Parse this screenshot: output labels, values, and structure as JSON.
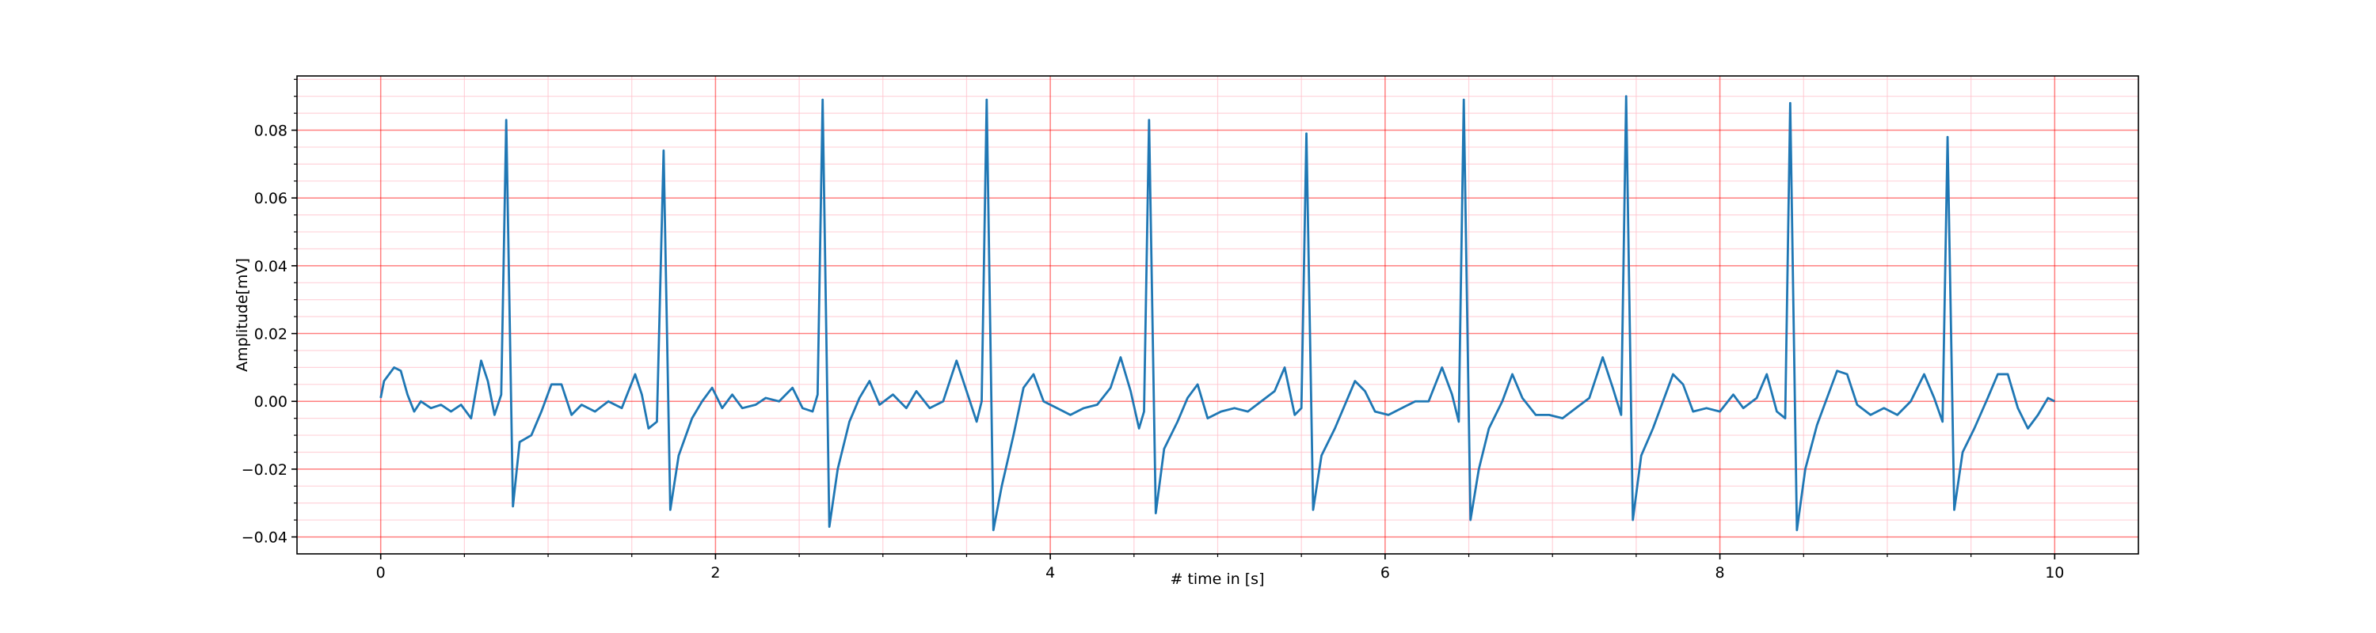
{
  "chart_data": {
    "type": "line",
    "xlabel": "# time in [s]",
    "ylabel": "Amplitude[mV]",
    "xlim": [
      -0.5,
      10.5
    ],
    "ylim": [
      -0.045,
      0.096
    ],
    "xticks": [
      0,
      2,
      4,
      6,
      8,
      10
    ],
    "yticks": [
      {
        "value": -0.04,
        "label": "−0.04"
      },
      {
        "value": -0.02,
        "label": "−0.02"
      },
      {
        "value": 0,
        "label": "0.00"
      },
      0.04,
      0.02,
      0.06,
      0.08
    ],
    "xminorticks": [
      0.5,
      1,
      1.5,
      2.5,
      3,
      3.5,
      4.5,
      5,
      5.5,
      6.5,
      7,
      7.5,
      8.5,
      9,
      9.5
    ],
    "yminorticks": [
      -0.035,
      -0.03,
      -0.025,
      -0.015,
      -0.01,
      -0.005,
      0.005,
      0.01,
      0.015,
      0.025,
      0.03,
      0.035,
      0.045,
      0.05,
      0.055,
      0.065,
      0.07,
      0.075,
      0.085,
      0.09,
      0.095
    ],
    "grid": true,
    "grid_color": "#ff0000",
    "minor_grid_color": "#ffc0cb",
    "x": [
      0,
      0.02,
      0.08,
      0.12,
      0.16,
      0.2,
      0.24,
      0.3,
      0.36,
      0.42,
      0.48,
      0.54,
      0.6,
      0.64,
      0.68,
      0.72,
      0.75,
      0.79,
      0.83,
      0.9,
      0.96,
      1.02,
      1.08,
      1.14,
      1.2,
      1.28,
      1.36,
      1.44,
      1.52,
      1.56,
      1.6,
      1.65,
      1.69,
      1.73,
      1.78,
      1.86,
      1.92,
      1.98,
      2.04,
      2.1,
      2.16,
      2.24,
      2.3,
      2.38,
      2.46,
      2.52,
      2.58,
      2.61,
      2.64,
      2.68,
      2.73,
      2.8,
      2.86,
      2.92,
      2.98,
      3.06,
      3.14,
      3.2,
      3.28,
      3.36,
      3.44,
      3.5,
      3.56,
      3.59,
      3.62,
      3.66,
      3.71,
      3.78,
      3.84,
      3.9,
      3.96,
      4.04,
      4.12,
      4.2,
      4.28,
      4.36,
      4.42,
      4.48,
      4.53,
      4.56,
      4.59,
      4.63,
      4.68,
      4.76,
      4.82,
      4.88,
      4.94,
      5.02,
      5.1,
      5.18,
      5.26,
      5.34,
      5.4,
      5.46,
      5.5,
      5.53,
      5.57,
      5.62,
      5.7,
      5.76,
      5.82,
      5.88,
      5.94,
      6.02,
      6.1,
      6.18,
      6.26,
      6.34,
      6.4,
      6.44,
      6.47,
      6.51,
      6.56,
      6.62,
      6.7,
      6.76,
      6.82,
      6.9,
      6.98,
      7.06,
      7.14,
      7.22,
      7.3,
      7.36,
      7.41,
      7.44,
      7.48,
      7.53,
      7.6,
      7.66,
      7.72,
      7.78,
      7.84,
      7.92,
      8.0,
      8.08,
      8.14,
      8.22,
      8.28,
      8.34,
      8.39,
      8.42,
      8.46,
      8.51,
      8.58,
      8.64,
      8.7,
      8.76,
      8.82,
      8.9,
      8.98,
      9.06,
      9.14,
      9.22,
      9.28,
      9.33,
      9.36,
      9.4,
      9.45,
      9.52,
      9.6,
      9.66,
      9.72,
      9.78,
      9.84,
      9.9,
      9.96,
      10.0
    ],
    "series": [
      {
        "color": "#1f77b4",
        "values": [
          0.001,
          0.006,
          0.01,
          0.009,
          0.002,
          -0.003,
          0.0,
          -0.002,
          -0.001,
          -0.003,
          -0.001,
          -0.005,
          0.012,
          0.006,
          -0.004,
          0.002,
          0.083,
          -0.031,
          -0.012,
          -0.01,
          -0.003,
          0.005,
          0.005,
          -0.004,
          -0.001,
          -0.003,
          0.0,
          -0.002,
          0.008,
          0.002,
          -0.008,
          -0.006,
          0.074,
          -0.032,
          -0.016,
          -0.005,
          0.0,
          0.004,
          -0.002,
          0.002,
          -0.002,
          -0.001,
          0.001,
          0.0,
          0.004,
          -0.002,
          -0.003,
          0.002,
          0.089,
          -0.037,
          -0.02,
          -0.006,
          0.001,
          0.006,
          -0.001,
          0.002,
          -0.002,
          0.003,
          -0.002,
          0.0,
          0.012,
          0.003,
          -0.006,
          0.0,
          0.089,
          -0.038,
          -0.025,
          -0.01,
          0.004,
          0.008,
          0.0,
          -0.002,
          -0.004,
          -0.002,
          -0.001,
          0.004,
          0.013,
          0.003,
          -0.008,
          -0.003,
          0.083,
          -0.033,
          -0.014,
          -0.006,
          0.001,
          0.005,
          -0.005,
          -0.003,
          -0.002,
          -0.003,
          0.0,
          0.003,
          0.01,
          -0.004,
          -0.002,
          0.079,
          -0.032,
          -0.016,
          -0.008,
          -0.001,
          0.006,
          0.003,
          -0.003,
          -0.004,
          -0.002,
          0.0,
          0.0,
          0.01,
          0.002,
          -0.006,
          0.089,
          -0.035,
          -0.02,
          -0.008,
          0.0,
          0.008,
          0.001,
          -0.004,
          -0.004,
          -0.005,
          -0.002,
          0.001,
          0.013,
          0.004,
          -0.004,
          0.09,
          -0.035,
          -0.016,
          -0.008,
          0.0,
          0.008,
          0.005,
          -0.003,
          -0.002,
          -0.003,
          0.002,
          -0.002,
          0.001,
          0.008,
          -0.003,
          -0.005,
          0.088,
          -0.038,
          -0.02,
          -0.007,
          0.001,
          0.009,
          0.008,
          -0.001,
          -0.004,
          -0.002,
          -0.004,
          0.0,
          0.008,
          0.001,
          -0.006,
          0.078,
          -0.032,
          -0.015,
          -0.008,
          0.001,
          0.008,
          0.008,
          -0.002,
          -0.008,
          -0.004,
          0.001,
          0.0
        ]
      }
    ]
  }
}
